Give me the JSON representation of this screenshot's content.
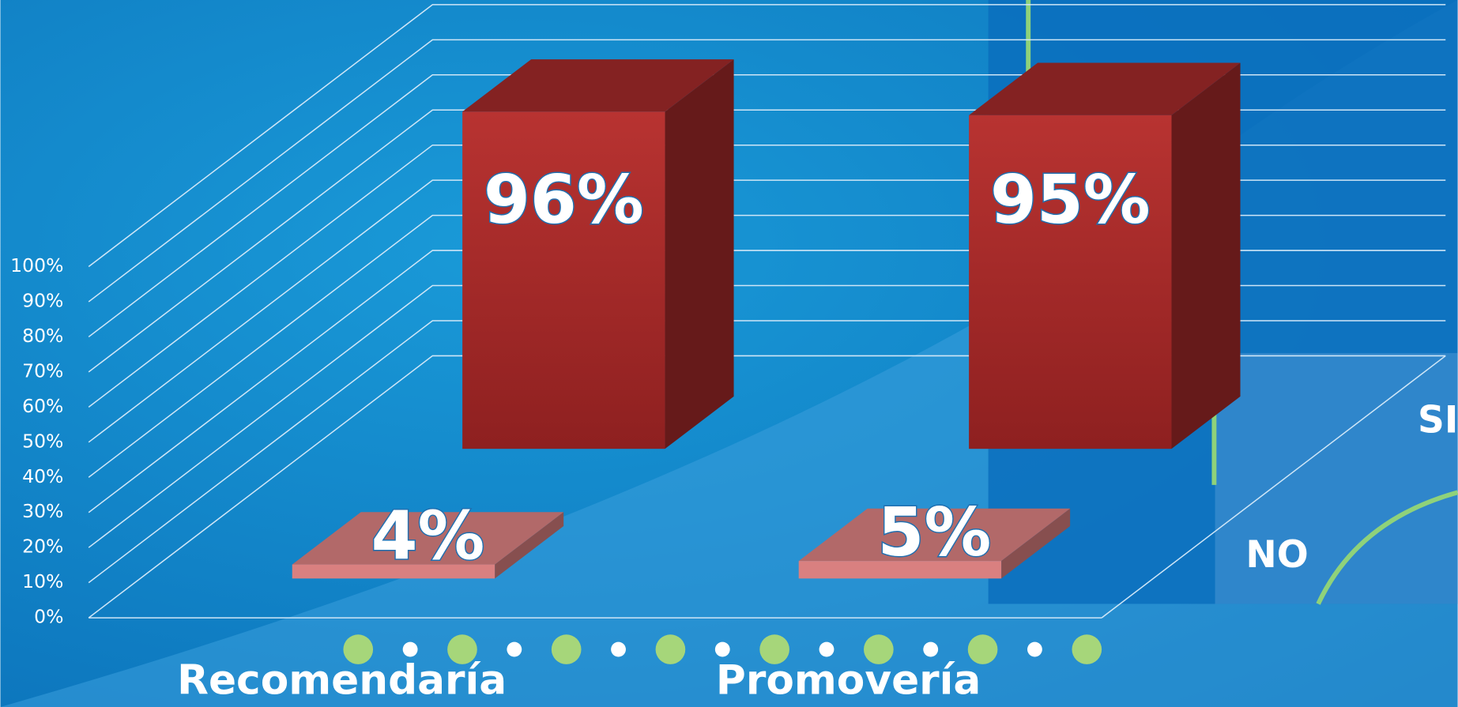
{
  "chart_data": {
    "type": "bar3d",
    "categories": [
      "Recomendaría",
      "Promovería"
    ],
    "series": [
      {
        "name": "SI",
        "color": "#a52a2a",
        "values": [
          96,
          95
        ],
        "value_labels": [
          "96%",
          "95%"
        ]
      },
      {
        "name": "NO",
        "color": "#d98080",
        "values": [
          4,
          5
        ],
        "value_labels": [
          "4%",
          "5%"
        ]
      }
    ],
    "ylim": [
      0,
      100
    ],
    "yticks": [
      {
        "value": 0,
        "label": "0%"
      },
      {
        "value": 10,
        "label": "10%"
      },
      {
        "value": 20,
        "label": "20%"
      },
      {
        "value": 30,
        "label": "30%"
      },
      {
        "value": 40,
        "label": "40%"
      },
      {
        "value": 50,
        "label": "50%"
      },
      {
        "value": 60,
        "label": "60%"
      },
      {
        "value": 70,
        "label": "70%"
      },
      {
        "value": 80,
        "label": "80%"
      },
      {
        "value": 90,
        "label": "90%"
      },
      {
        "value": 100,
        "label": "100%"
      }
    ],
    "grid": true
  }
}
